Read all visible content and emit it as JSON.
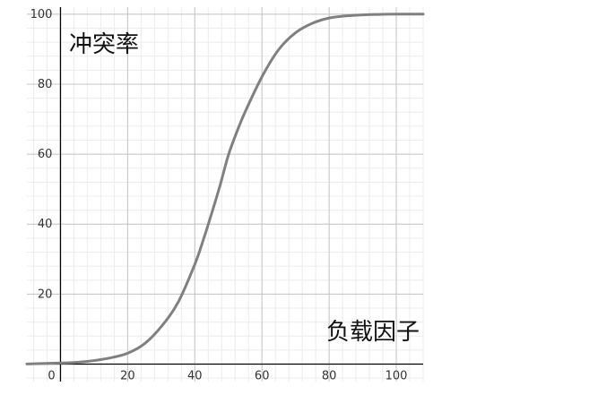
{
  "chart_data": {
    "type": "line",
    "xlabel": "负载因子",
    "ylabel": "冲突率",
    "xlim": [
      -10,
      108
    ],
    "ylim": [
      -5,
      102
    ],
    "x_ticks": [
      0,
      20,
      40,
      60,
      80,
      100
    ],
    "y_ticks": [
      20,
      40,
      60,
      80,
      100
    ],
    "grid": true,
    "minor_grid_step": 4,
    "series": [
      {
        "color": "#808080",
        "x": [
          -10,
          0,
          5,
          10,
          15,
          20,
          25,
          30,
          35,
          40,
          42.5,
          45,
          47.5,
          50,
          52.5,
          55,
          60,
          65,
          70,
          75,
          80,
          85,
          90,
          100,
          108
        ],
        "y": [
          0.03,
          0.3,
          0.5,
          1.0,
          1.8,
          3.1,
          5.8,
          10.7,
          17.6,
          28.5,
          35.4,
          43.0,
          51.0,
          59.7,
          66.3,
          72.1,
          82.1,
          89.9,
          94.7,
          97.4,
          98.9,
          99.5,
          99.8,
          100.0,
          100.0
        ]
      }
    ]
  },
  "colors": {
    "major_grid": "#c4c4c4",
    "minor_grid": "#ececec",
    "axis": "#000000",
    "curve": "#808080"
  }
}
